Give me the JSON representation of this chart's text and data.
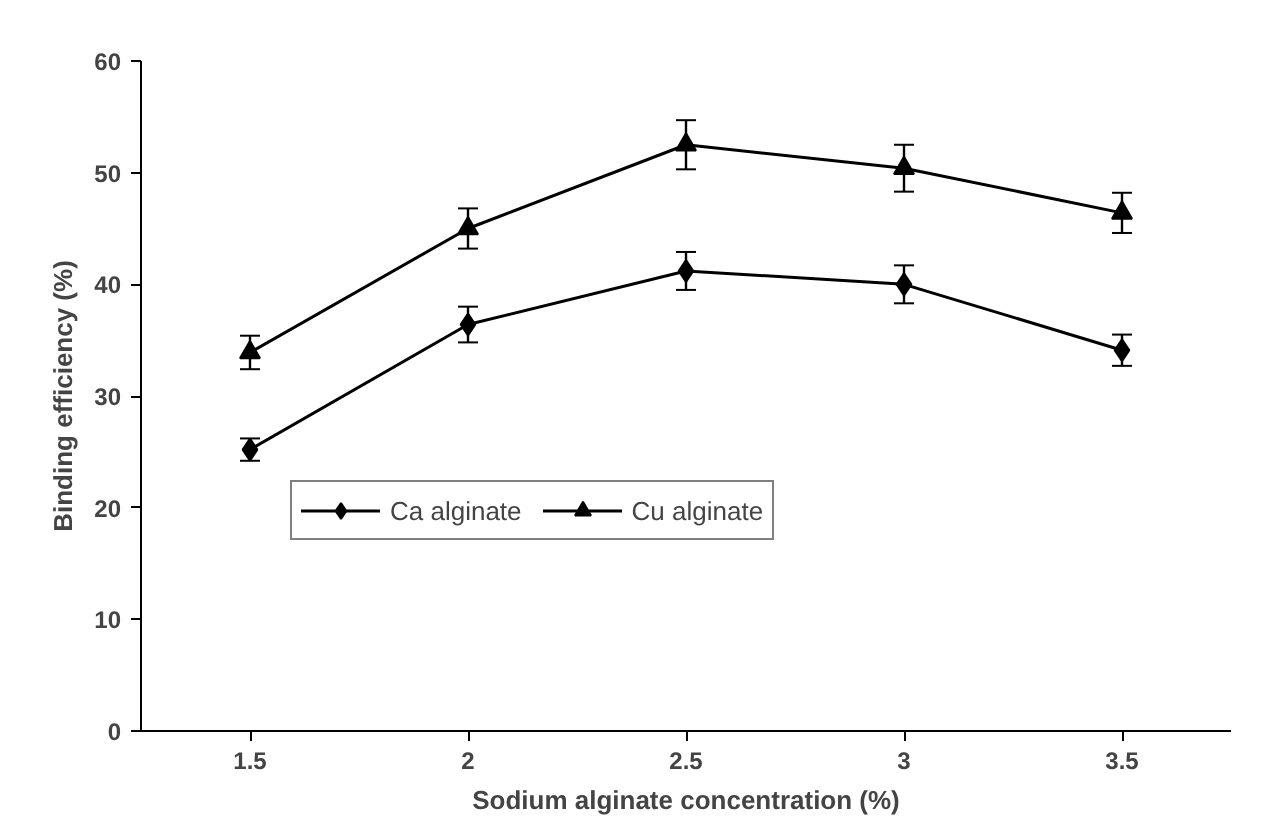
{
  "chart_data": {
    "type": "line",
    "xlabel": "Sodium alginate concentration (%)",
    "ylabel": "Binding efficiency (%)",
    "categories": [
      "1.5",
      "2",
      "2.5",
      "3",
      "3.5"
    ],
    "series": [
      {
        "name": "Ca alginate",
        "color": "#000000",
        "marker": "diamond",
        "values": [
          25.2,
          36.4,
          41.2,
          40.0,
          34.1
        ],
        "errors": [
          1.0,
          1.6,
          1.7,
          1.7,
          1.4
        ]
      },
      {
        "name": "Cu alginate",
        "color": "#000000",
        "marker": "triangle",
        "values": [
          33.9,
          45.0,
          52.5,
          50.4,
          46.4
        ],
        "errors": [
          1.5,
          1.8,
          2.2,
          2.1,
          1.8
        ]
      }
    ],
    "ylim": [
      0,
      60
    ],
    "yticks": [
      0,
      10,
      20,
      30,
      40,
      50,
      60
    ],
    "grid": false,
    "legend": "bottom",
    "line_style": "solid"
  }
}
